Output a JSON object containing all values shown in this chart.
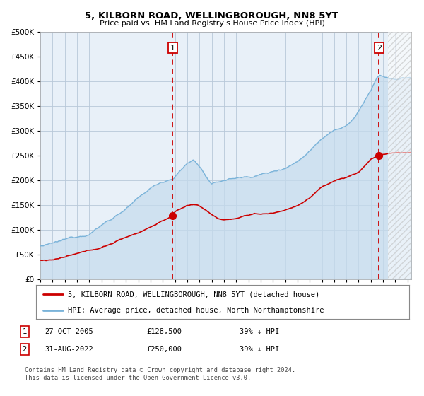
{
  "title": "5, KILBORN ROAD, WELLINGBOROUGH, NN8 5YT",
  "subtitle": "Price paid vs. HM Land Registry's House Price Index (HPI)",
  "plot_bg_color": "#e8f0f8",
  "hpi_color": "#7ab3d9",
  "hpi_fill_color": "#c5dcee",
  "price_color": "#cc0000",
  "marker_color": "#cc0000",
  "dashed_line_color": "#cc0000",
  "transaction1_price": 128500,
  "transaction1_x": 2005.82,
  "transaction2_price": 250000,
  "transaction2_x": 2022.67,
  "legend_label1": "5, KILBORN ROAD, WELLINGBOROUGH, NN8 5YT (detached house)",
  "legend_label2": "HPI: Average price, detached house, North Northamptonshire",
  "footer": "Contains HM Land Registry data © Crown copyright and database right 2024.\nThis data is licensed under the Open Government Licence v3.0.",
  "table_row1": [
    "1",
    "27-OCT-2005",
    "£128,500",
    "39% ↓ HPI"
  ],
  "table_row2": [
    "2",
    "31-AUG-2022",
    "£250,000",
    "39% ↓ HPI"
  ],
  "ylim": [
    0,
    500000
  ],
  "xlim_start": 1995.0,
  "xlim_end": 2025.3,
  "hatch_start": 2023.4,
  "yticks": [
    0,
    50000,
    100000,
    150000,
    200000,
    250000,
    300000,
    350000,
    400000,
    450000,
    500000
  ],
  "hpi_anchors_x": [
    1995,
    1996,
    1997,
    1998,
    1999,
    2000,
    2001,
    2002,
    2003,
    2004,
    2005,
    2005.82,
    2006,
    2007,
    2007.5,
    2008,
    2009,
    2009.5,
    2010,
    2011,
    2012,
    2013,
    2014,
    2015,
    2016,
    2017,
    2018,
    2019,
    2020,
    2020.5,
    2021,
    2021.5,
    2022,
    2022.5,
    2022.67,
    2023,
    2023.5,
    2024,
    2024.5,
    2025.3
  ],
  "hpi_anchors_y": [
    67000,
    70000,
    76000,
    83000,
    92000,
    110000,
    127000,
    145000,
    163000,
    183000,
    197000,
    205000,
    210000,
    235000,
    242000,
    230000,
    192000,
    195000,
    200000,
    205000,
    207000,
    213000,
    218000,
    228000,
    242000,
    265000,
    292000,
    313000,
    320000,
    332000,
    350000,
    370000,
    388000,
    415000,
    420000,
    418000,
    413000,
    410000,
    413000,
    413000
  ],
  "price_anchors_x": [
    1995,
    1996,
    1997,
    1998,
    1999,
    2000,
    2001,
    2002,
    2003,
    2004,
    2005,
    2005.82,
    2006,
    2007,
    2007.5,
    2008,
    2009,
    2009.5,
    2010,
    2011,
    2012,
    2012.5,
    2013,
    2014,
    2015,
    2016,
    2017,
    2018,
    2019,
    2020,
    2021,
    2022,
    2022.67,
    2023,
    2024,
    2025.3
  ],
  "price_anchors_y": [
    38000,
    40000,
    45000,
    50000,
    55000,
    62000,
    72000,
    83000,
    93000,
    105000,
    118000,
    128500,
    135000,
    148000,
    150000,
    148000,
    130000,
    122000,
    120000,
    122000,
    127000,
    131000,
    130000,
    132000,
    138000,
    148000,
    163000,
    185000,
    198000,
    205000,
    215000,
    242000,
    250000,
    252000,
    255000,
    255000
  ]
}
